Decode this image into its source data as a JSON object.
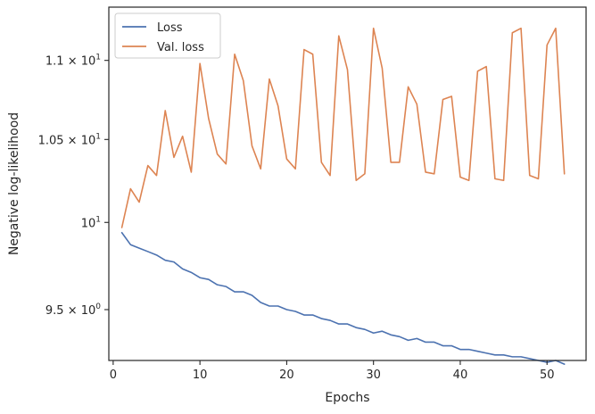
{
  "chart_data": {
    "type": "line",
    "xlabel": "Epochs",
    "ylabel": "Negative log-likelihood",
    "yscale": "log",
    "grid": false,
    "legend_position": "top-left",
    "xlim": [
      -0.5,
      54.5
    ],
    "ylim": [
      9.22,
      11.35
    ],
    "xticks": [
      {
        "value": 0,
        "label": "0"
      },
      {
        "value": 10,
        "label": "10"
      },
      {
        "value": 20,
        "label": "20"
      },
      {
        "value": 30,
        "label": "30"
      },
      {
        "value": 40,
        "label": "40"
      },
      {
        "value": 50,
        "label": "50"
      }
    ],
    "yticks": [
      {
        "value": 9.5,
        "mant": "9.5",
        "exp": "0"
      },
      {
        "value": 10.0,
        "mant": "10",
        "exp": "1"
      },
      {
        "value": 10.5,
        "mant": "1.05",
        "exp": "1"
      },
      {
        "value": 11.0,
        "mant": "1.1",
        "exp": "1"
      }
    ],
    "x": [
      1,
      2,
      3,
      4,
      5,
      6,
      7,
      8,
      9,
      10,
      11,
      12,
      13,
      14,
      15,
      16,
      17,
      18,
      19,
      20,
      21,
      22,
      23,
      24,
      25,
      26,
      27,
      28,
      29,
      30,
      31,
      32,
      33,
      34,
      35,
      36,
      37,
      38,
      39,
      40,
      41,
      42,
      43,
      44,
      45,
      46,
      47,
      48,
      49,
      50,
      51,
      52
    ],
    "series": [
      {
        "name": "Loss",
        "color": "#4c72b0",
        "values": [
          9.94,
          9.87,
          9.85,
          9.83,
          9.81,
          9.78,
          9.77,
          9.73,
          9.71,
          9.68,
          9.67,
          9.64,
          9.63,
          9.6,
          9.6,
          9.58,
          9.54,
          9.52,
          9.52,
          9.5,
          9.49,
          9.47,
          9.47,
          9.45,
          9.44,
          9.42,
          9.42,
          9.4,
          9.39,
          9.37,
          9.38,
          9.36,
          9.35,
          9.33,
          9.34,
          9.32,
          9.32,
          9.3,
          9.3,
          9.28,
          9.28,
          9.27,
          9.26,
          9.25,
          9.25,
          9.24,
          9.24,
          9.23,
          9.22,
          9.21,
          9.22,
          9.2
        ]
      },
      {
        "name": "Val. loss",
        "color": "#dd8452",
        "values": [
          9.97,
          10.2,
          10.12,
          10.34,
          10.28,
          10.68,
          10.39,
          10.52,
          10.3,
          10.98,
          10.63,
          10.41,
          10.35,
          11.04,
          10.87,
          10.46,
          10.32,
          10.88,
          10.71,
          10.38,
          10.32,
          11.07,
          11.04,
          10.36,
          10.28,
          11.16,
          10.94,
          10.25,
          10.29,
          11.21,
          10.95,
          10.36,
          10.36,
          10.83,
          10.72,
          10.3,
          10.29,
          10.75,
          10.77,
          10.27,
          10.25,
          10.93,
          10.96,
          10.26,
          10.25,
          11.18,
          11.21,
          10.28,
          10.26,
          11.1,
          11.21,
          10.29
        ]
      }
    ]
  }
}
